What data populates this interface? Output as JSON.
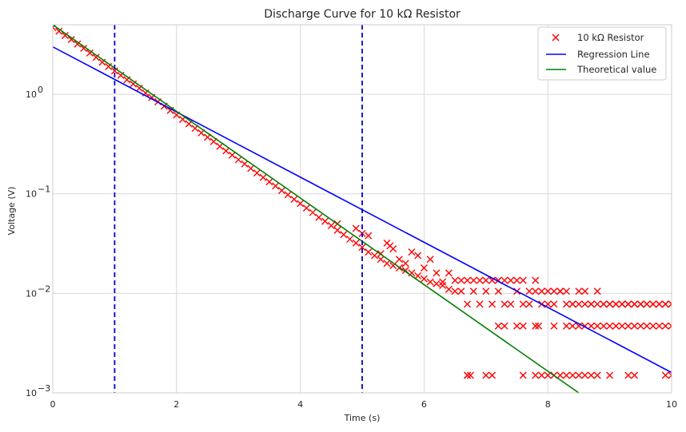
{
  "chart_data": {
    "type": "scatter",
    "title": "Discharge Curve for 10 kΩ Resistor",
    "xlabel": "Time (s)",
    "ylabel": "Voltage (V)",
    "xlim": [
      0,
      10
    ],
    "ylim": [
      0.001,
      5
    ],
    "yscale": "log",
    "grid": true,
    "legend_position": "top-right",
    "x_ticks": [
      0,
      2,
      4,
      6,
      8,
      10
    ],
    "y_ticks": [
      {
        "value": 0.001,
        "base": "10",
        "exp": "−3"
      },
      {
        "value": 0.01,
        "base": "10",
        "exp": "−2"
      },
      {
        "value": 0.1,
        "base": "10",
        "exp": "−1"
      },
      {
        "value": 1,
        "base": "10",
        "exp": "0"
      }
    ],
    "series": [
      {
        "name": "10 kΩ Resistor",
        "kind": "scatter",
        "marker": "x",
        "color": "#ff0000",
        "x": [
          0.0,
          0.1,
          0.2,
          0.3,
          0.4,
          0.5,
          0.6,
          0.7,
          0.8,
          0.9,
          1.0,
          1.1,
          1.2,
          1.3,
          1.4,
          1.5,
          1.6,
          1.7,
          1.8,
          1.9,
          2.0,
          2.1,
          2.2,
          2.3,
          2.4,
          2.5,
          2.6,
          2.7,
          2.8,
          2.9,
          3.0,
          3.1,
          3.2,
          3.3,
          3.4,
          3.5,
          3.6,
          3.7,
          3.8,
          3.9,
          4.0,
          4.1,
          4.2,
          4.3,
          4.4,
          4.5,
          4.6,
          4.7,
          4.8,
          4.9,
          5.0,
          5.1,
          5.2,
          5.3,
          5.4,
          5.5,
          5.6,
          5.7,
          5.8,
          5.9,
          6.0,
          6.1,
          6.2,
          6.3,
          6.4,
          6.5,
          6.6,
          6.7,
          6.8,
          6.9,
          7.0,
          7.1,
          7.2,
          7.3,
          7.4,
          7.5,
          7.6,
          7.7,
          7.8,
          7.9,
          8.0,
          8.1,
          8.2,
          8.3,
          8.4,
          8.5,
          8.6,
          8.7,
          8.8,
          8.9,
          9.0,
          9.1,
          9.2,
          9.3,
          9.4,
          9.5,
          9.6,
          9.7,
          9.8,
          9.9,
          10.0,
          4.6,
          4.9,
          5.0,
          5.1,
          5.3,
          5.4,
          5.45,
          5.5,
          5.6,
          5.7,
          5.8,
          5.9,
          6.0,
          6.1,
          6.2,
          6.3,
          6.4,
          6.5,
          6.6,
          6.7,
          6.8,
          6.9,
          7.0,
          7.1,
          7.2,
          7.3,
          7.4,
          7.5,
          7.6,
          7.7,
          7.8,
          7.9,
          8.0,
          8.1,
          8.2,
          8.3,
          8.4,
          8.5,
          8.6,
          8.7,
          8.8,
          8.9,
          9.0,
          9.1,
          9.2,
          9.3,
          9.4,
          9.5,
          9.6,
          9.7,
          9.8,
          9.9,
          10.0,
          6.7,
          6.75,
          7.2,
          7.3,
          7.5,
          7.6,
          7.8,
          7.85,
          8.1,
          8.3,
          8.4,
          8.5,
          8.6,
          8.7,
          8.8,
          8.9,
          9.0,
          9.1,
          9.2,
          9.3,
          9.4,
          9.5,
          9.6,
          9.7,
          9.8,
          9.9,
          10.0,
          6.7,
          7.0,
          7.1,
          7.6,
          7.8,
          7.9,
          8.0,
          8.1,
          8.2,
          8.3,
          8.4,
          8.5,
          8.6,
          8.7,
          8.8,
          9.0,
          9.3,
          9.4,
          9.9,
          10.0
        ],
        "y": [
          4.7,
          4.3,
          3.9,
          3.55,
          3.2,
          2.9,
          2.6,
          2.35,
          2.1,
          1.9,
          1.72,
          1.55,
          1.4,
          1.27,
          1.15,
          1.03,
          0.93,
          0.84,
          0.76,
          0.69,
          0.62,
          0.56,
          0.505,
          0.455,
          0.41,
          0.37,
          0.335,
          0.3,
          0.27,
          0.245,
          0.22,
          0.2,
          0.18,
          0.162,
          0.146,
          0.132,
          0.12,
          0.108,
          0.098,
          0.088,
          0.08,
          0.072,
          0.065,
          0.058,
          0.053,
          0.048,
          0.043,
          0.039,
          0.035,
          0.032,
          0.029,
          0.026,
          0.024,
          0.022,
          0.02,
          0.019,
          0.018,
          0.017,
          0.016,
          0.015,
          0.014,
          0.013,
          0.0125,
          0.012,
          0.011,
          0.0105,
          0.0105,
          0.0078,
          0.0105,
          0.0078,
          0.0105,
          0.0078,
          0.0105,
          0.0078,
          0.0078,
          0.0105,
          0.0078,
          0.0078,
          0.0105,
          0.0078,
          0.0078,
          0.0078,
          0.0105,
          0.0078,
          0.0078,
          0.0078,
          0.0078,
          0.0078,
          0.0078,
          0.0078,
          0.0078,
          0.0078,
          0.0078,
          0.0078,
          0.0078,
          0.0078,
          0.0078,
          0.0078,
          0.0078,
          0.0078,
          0.0078,
          0.05,
          0.045,
          0.04,
          0.038,
          0.025,
          0.032,
          0.03,
          0.028,
          0.022,
          0.02,
          0.026,
          0.024,
          0.018,
          0.022,
          0.016,
          0.013,
          0.016,
          0.0135,
          0.0135,
          0.0135,
          0.0135,
          0.0135,
          0.0135,
          0.0135,
          0.0135,
          0.0135,
          0.0135,
          0.0135,
          0.0135,
          0.0105,
          0.0135,
          0.0105,
          0.0105,
          0.0105,
          0.0105,
          0.0105,
          0.0078,
          0.0105,
          0.0105,
          0.0078,
          0.0105,
          0.0078,
          0.0078,
          0.0078,
          0.0078,
          0.0078,
          0.0078,
          0.0078,
          0.0078,
          0.0078,
          0.0078,
          0.0078,
          0.0078,
          0.0015,
          0.0015,
          0.0047,
          0.0047,
          0.0047,
          0.0047,
          0.0047,
          0.0047,
          0.0047,
          0.0047,
          0.0047,
          0.0047,
          0.0047,
          0.0047,
          0.0047,
          0.0047,
          0.0047,
          0.0047,
          0.0047,
          0.0047,
          0.0047,
          0.0047,
          0.0047,
          0.0047,
          0.0047,
          0.0047,
          0.0047,
          0.0015,
          0.0015,
          0.0015,
          0.0015,
          0.0015,
          0.0015,
          0.0015,
          0.0015,
          0.0015,
          0.0015,
          0.0015,
          0.0015,
          0.0015,
          0.0015,
          0.0015,
          0.0015,
          0.0015,
          0.0015,
          0.0015,
          0.0015
        ]
      },
      {
        "name": "Regression Line",
        "kind": "line",
        "color": "#0000ff",
        "x": [
          0,
          10
        ],
        "y": [
          3.0,
          0.0016
        ]
      },
      {
        "name": "Theoretical value",
        "kind": "line",
        "color": "#008000",
        "x": [
          0,
          8.5
        ],
        "y": [
          5.0,
          0.001
        ]
      }
    ],
    "vertical_lines": [
      {
        "x": 1,
        "color": "#0000cc",
        "style": "dashed"
      },
      {
        "x": 5,
        "color": "#0000cc",
        "style": "dashed"
      }
    ]
  }
}
